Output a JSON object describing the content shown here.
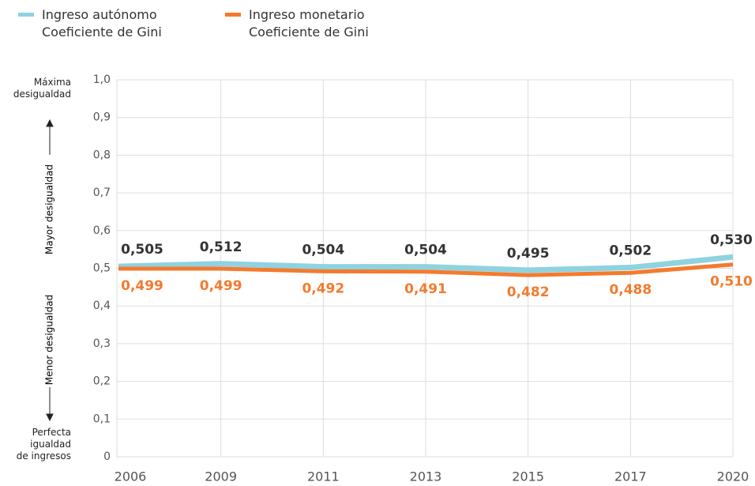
{
  "chart_data": {
    "type": "line",
    "categories": [
      "2006",
      "2009",
      "2011",
      "2013",
      "2015",
      "2017",
      "2020"
    ],
    "series": [
      {
        "name": "Ingreso autónomo\nCoeficiente de Gini",
        "color": "#8fd2e0",
        "values": [
          0.505,
          0.512,
          0.504,
          0.504,
          0.495,
          0.502,
          0.53
        ],
        "value_labels": [
          "0,505",
          "0,512",
          "0,504",
          "0,504",
          "0,495",
          "0,502",
          "0,530"
        ]
      },
      {
        "name": "Ingreso monetario\nCoeficiente de Gini",
        "color": "#f47a2e",
        "values": [
          0.499,
          0.499,
          0.492,
          0.491,
          0.482,
          0.488,
          0.51
        ],
        "value_labels": [
          "0,499",
          "0,499",
          "0,492",
          "0,491",
          "0,482",
          "0,488",
          "0,510"
        ]
      }
    ],
    "ylim": [
      0,
      1
    ],
    "yticks": [
      0,
      {
        "value": 0.1,
        "label": "0,1"
      },
      {
        "value": 0.2,
        "label": "0,2"
      },
      {
        "value": 0.3,
        "label": "0,3"
      },
      {
        "value": 0.4,
        "label": "0,4"
      },
      {
        "value": 0.5,
        "label": "0,5"
      },
      {
        "value": 0.6,
        "label": "0,6"
      },
      {
        "value": 0.7,
        "label": "0,7"
      },
      {
        "value": 0.8,
        "label": "0,8"
      },
      {
        "value": 0.9,
        "label": "0,9"
      },
      {
        "value": 1,
        "label": "1,0"
      }
    ],
    "grid": true,
    "annotations": {
      "top": "Máxima\ndesigualdad",
      "upper": "Mayor desigualdad",
      "lower": "Menor desigualdad",
      "bottom": "Perfecta\nigualdad\nde ingresos"
    }
  }
}
